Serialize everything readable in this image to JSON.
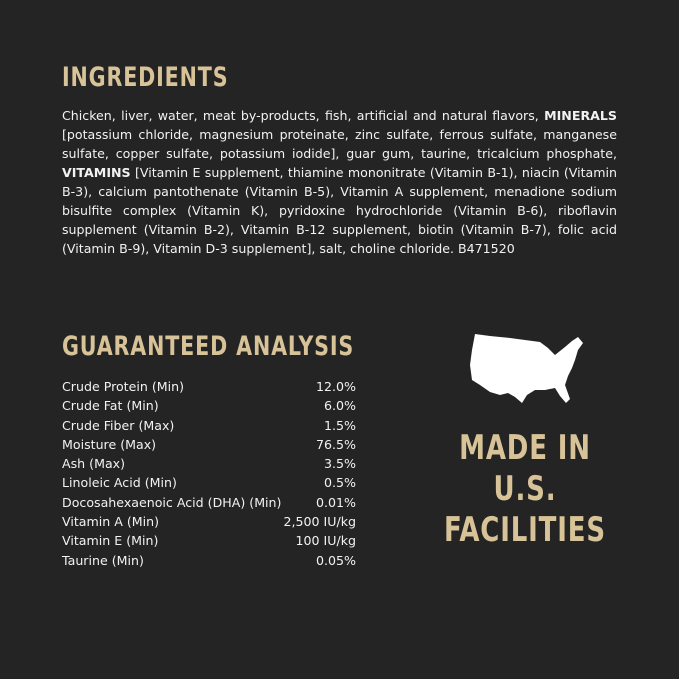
{
  "ingredients": {
    "title": "INGREDIENTS",
    "part1": "Chicken, liver, water, meat by-products, fish, artificial and natural flavors, ",
    "minerals_label": "MINERALS",
    "part2": " [potassium chloride, magnesium proteinate, zinc sulfate, ferrous sulfate, manganese sulfate, copper sulfate, potassium iodide], guar gum, taurine, tricalcium phosphate, ",
    "vitamins_label": "VITAMINS",
    "part3": " [Vitamin E supplement, thiamine mononitrate (Vitamin B-1), niacin (Vitamin B-3), calcium pantothenate (Vitamin B-5), Vitamin A supplement, menadione sodium bisulfite complex (Vitamin K), pyridoxine hydrochloride (Vitamin B-6), riboflavin supplement (Vitamin B-2), Vitamin B-12 supplement, biotin (Vitamin B-7), folic acid (Vitamin B-9), Vitamin D-3 supplement], salt, choline chloride. B471520"
  },
  "analysis": {
    "title": "GUARANTEED ANALYSIS",
    "rows": [
      {
        "label": "Crude Protein (Min)",
        "value": "12.0%"
      },
      {
        "label": "Crude Fat (Min)",
        "value": "6.0%"
      },
      {
        "label": "Crude Fiber (Max)",
        "value": "1.5%"
      },
      {
        "label": "Moisture (Max)",
        "value": "76.5%"
      },
      {
        "label": "Ash (Max)",
        "value": "3.5%"
      },
      {
        "label": "Linoleic Acid (Min)",
        "value": "0.5%"
      },
      {
        "label": "Docosahexaenoic Acid (DHA) (Min)",
        "value": "0.01%"
      },
      {
        "label": "Vitamin A (Min)",
        "value": "2,500 IU/kg"
      },
      {
        "label": "Vitamin E (Min)",
        "value": "100 IU/kg"
      },
      {
        "label": "Taurine (Min)",
        "value": "0.05%"
      }
    ]
  },
  "made_in": {
    "icon": "usa-map-icon",
    "lines": [
      "MADE IN",
      "U.S.",
      "FACILITIES"
    ]
  },
  "colors": {
    "background": "#242424",
    "accent": "#d8c398",
    "text": "#f2f2f2"
  }
}
